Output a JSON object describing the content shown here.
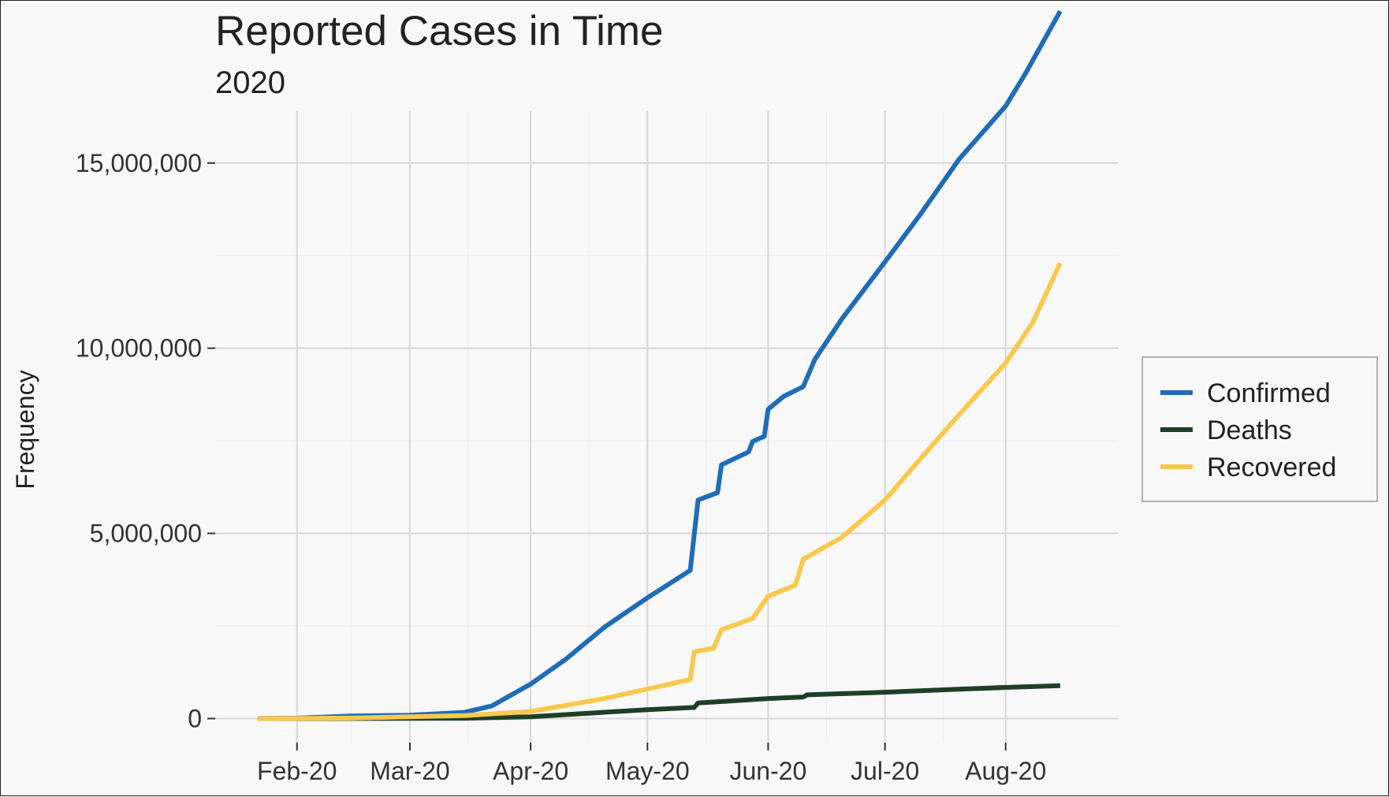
{
  "chart_data": {
    "type": "line",
    "title": "Reported Cases in Time",
    "subtitle": "2020",
    "xlabel": "",
    "ylabel": "Frequency",
    "x_ticks": [
      {
        "date": "2020-02-01",
        "label": "Feb-20"
      },
      {
        "date": "2020-03-01",
        "label": "Mar-20"
      },
      {
        "date": "2020-04-01",
        "label": "Apr-20"
      },
      {
        "date": "2020-05-01",
        "label": "May-20"
      },
      {
        "date": "2020-06-01",
        "label": "Jun-20"
      },
      {
        "date": "2020-07-01",
        "label": "Jul-20"
      },
      {
        "date": "2020-08-01",
        "label": "Aug-20"
      }
    ],
    "y_ticks": [
      {
        "value": 0,
        "label": "0"
      },
      {
        "value": 5000000,
        "label": "5,000,000"
      },
      {
        "value": 10000000,
        "label": "10,000,000"
      },
      {
        "value": 15000000,
        "label": "15,000,000"
      }
    ],
    "xlim": [
      "2020-01-11",
      "2020-08-30"
    ],
    "ylim": [
      -650000,
      16400000
    ],
    "grid": true,
    "legend_position": "right",
    "series": [
      {
        "name": "Confirmed",
        "color": "#1f6cb8",
        "points": [
          [
            "2020-01-22",
            555
          ],
          [
            "2020-02-01",
            12000
          ],
          [
            "2020-02-15",
            69000
          ],
          [
            "2020-03-01",
            88000
          ],
          [
            "2020-03-15",
            168000
          ],
          [
            "2020-03-22",
            337000
          ],
          [
            "2020-04-01",
            930000
          ],
          [
            "2020-04-10",
            1600000
          ],
          [
            "2020-04-20",
            2470000
          ],
          [
            "2020-05-01",
            3260000
          ],
          [
            "2020-05-12",
            4000000
          ],
          [
            "2020-05-14",
            5900000
          ],
          [
            "2020-05-19",
            6100000
          ],
          [
            "2020-05-20",
            6850000
          ],
          [
            "2020-05-27",
            7200000
          ],
          [
            "2020-05-28",
            7480000
          ],
          [
            "2020-05-31",
            7620000
          ],
          [
            "2020-06-01",
            8350000
          ],
          [
            "2020-06-05",
            8700000
          ],
          [
            "2020-06-10",
            8960000
          ],
          [
            "2020-06-13",
            9700000
          ],
          [
            "2020-06-20",
            10800000
          ],
          [
            "2020-07-01",
            12330000
          ],
          [
            "2020-07-10",
            13600000
          ],
          [
            "2020-07-20",
            15100000
          ],
          [
            "2020-08-01",
            16540000
          ],
          [
            "2020-08-06",
            17400000
          ],
          [
            "2020-08-15",
            19100000
          ]
        ]
      },
      {
        "name": "Deaths",
        "color": "#1d3f24",
        "points": [
          [
            "2020-01-22",
            17
          ],
          [
            "2020-02-15",
            1700
          ],
          [
            "2020-03-15",
            7000
          ],
          [
            "2020-04-01",
            47000
          ],
          [
            "2020-04-15",
            137000
          ],
          [
            "2020-05-01",
            240000
          ],
          [
            "2020-05-13",
            300000
          ],
          [
            "2020-05-14",
            420000
          ],
          [
            "2020-05-20",
            460000
          ],
          [
            "2020-06-01",
            540000
          ],
          [
            "2020-06-10",
            580000
          ],
          [
            "2020-06-11",
            640000
          ],
          [
            "2020-07-01",
            710000
          ],
          [
            "2020-07-20",
            790000
          ],
          [
            "2020-08-01",
            840000
          ],
          [
            "2020-08-15",
            890000
          ]
        ]
      },
      {
        "name": "Recovered",
        "color": "#f9c94e",
        "points": [
          [
            "2020-01-22",
            28
          ],
          [
            "2020-02-15",
            12000
          ],
          [
            "2020-03-15",
            80000
          ],
          [
            "2020-04-01",
            190000
          ],
          [
            "2020-04-20",
            540000
          ],
          [
            "2020-05-12",
            1050000
          ],
          [
            "2020-05-13",
            1800000
          ],
          [
            "2020-05-18",
            1900000
          ],
          [
            "2020-05-20",
            2400000
          ],
          [
            "2020-05-28",
            2700000
          ],
          [
            "2020-06-01",
            3300000
          ],
          [
            "2020-06-08",
            3600000
          ],
          [
            "2020-06-10",
            4300000
          ],
          [
            "2020-06-20",
            4900000
          ],
          [
            "2020-07-01",
            5900000
          ],
          [
            "2020-07-10",
            7000000
          ],
          [
            "2020-07-20",
            8200000
          ],
          [
            "2020-08-01",
            9600000
          ],
          [
            "2020-08-08",
            10700000
          ],
          [
            "2020-08-15",
            12300000
          ]
        ]
      }
    ]
  }
}
